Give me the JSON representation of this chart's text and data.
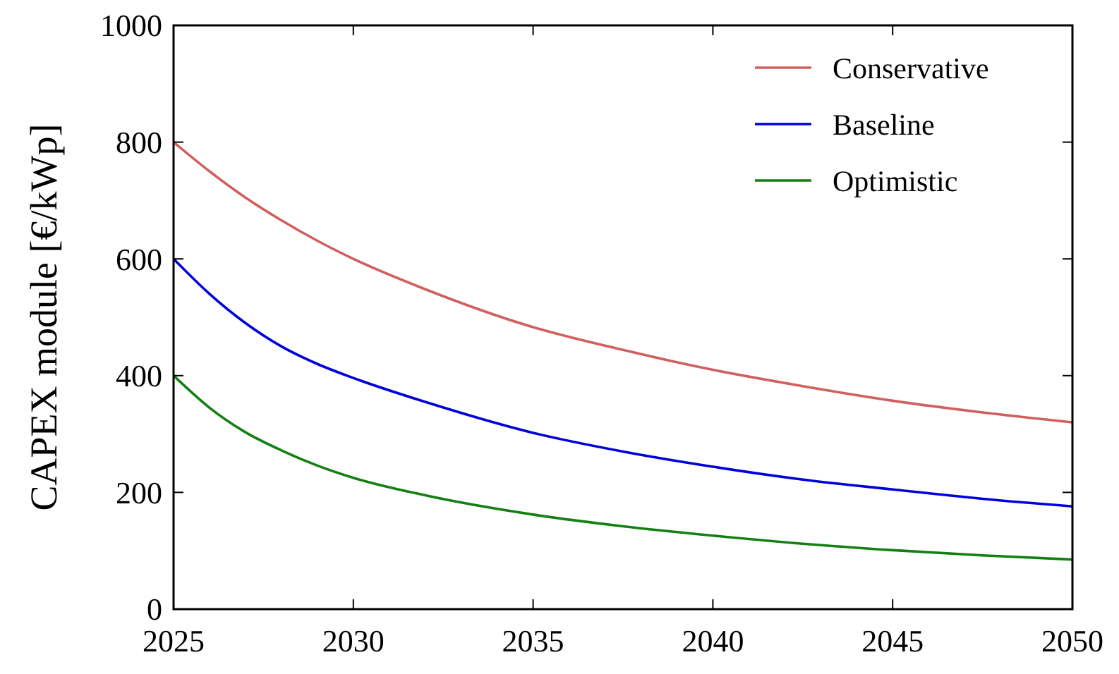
{
  "chart_data": {
    "type": "line",
    "ylabel": "CAPEX module [€/kWp]",
    "x": [
      2025,
      2026,
      2027,
      2028,
      2029,
      2030,
      2032,
      2035,
      2037.5,
      2040,
      2042.5,
      2045,
      2047.5,
      2050
    ],
    "series": [
      {
        "name": "Conservative",
        "color": "#d0605f",
        "values": [
          800,
          750,
          705,
          666,
          631,
          600,
          548,
          483,
          444,
          410,
          382,
          357,
          337,
          320
        ]
      },
      {
        "name": "Baseline",
        "color": "#0000dd",
        "values": [
          600,
          540,
          490,
          450,
          420,
          396,
          355,
          302,
          270,
          244,
          222,
          205,
          189,
          176
        ]
      },
      {
        "name": "Optimistic",
        "color": "#138013",
        "values": [
          400,
          345,
          303,
          272,
          246,
          225,
          195,
          162,
          142,
          126,
          112,
          101,
          92,
          85
        ]
      }
    ],
    "xlim": [
      2025,
      2050
    ],
    "xticks": [
      2025,
      2030,
      2035,
      2040,
      2045,
      2050
    ],
    "ylim": [
      0,
      1000
    ],
    "yticks": [
      0,
      200,
      400,
      600,
      800,
      1000
    ],
    "legend": "top right",
    "line_style": "solid",
    "marker": "none"
  }
}
